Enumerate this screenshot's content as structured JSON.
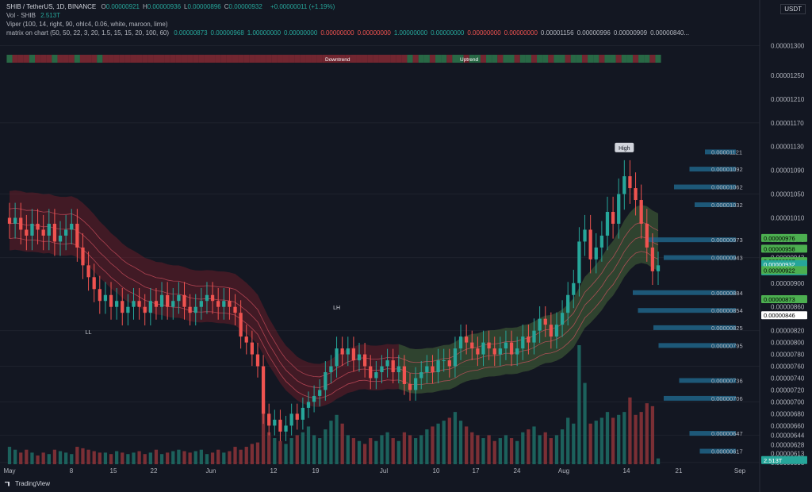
{
  "header": {
    "symbol_line": "SHIB / TetherUS, 1D, BINANCE",
    "ohlc": [
      {
        "k": "O",
        "v": "0.00000921"
      },
      {
        "k": "H",
        "v": "0.00000936"
      },
      {
        "k": "L",
        "v": "0.00000896"
      },
      {
        "k": "C",
        "v": "0.00000932"
      }
    ],
    "change": "+0.00000011 (+1.19%)",
    "vol_label": "Vol · SHIB",
    "vol_value": "2.513T",
    "viper_label": "Viper (100, 14, right, 90, ohlc4, 0.06, white, maroon, lime)",
    "matrix_label": "matrix on chart (50, 50, 22, 3, 20, 1.5, 15, 15, 20, 100, 60)",
    "matrix_values": [
      {
        "v": "0.00000873",
        "c": "#26a69a"
      },
      {
        "v": "0.00000968",
        "c": "#26a69a"
      },
      {
        "v": "1.00000000",
        "c": "#26a69a"
      },
      {
        "v": "0.00000000",
        "c": "#26a69a"
      },
      {
        "v": "0.00000000",
        "c": "#ef5350"
      },
      {
        "v": "0.00000000",
        "c": "#ef5350"
      },
      {
        "v": "1.00000000",
        "c": "#26a69a"
      },
      {
        "v": "0.00000000",
        "c": "#26a69a"
      },
      {
        "v": "0.00000000",
        "c": "#ef5350"
      },
      {
        "v": "0.00000000",
        "c": "#ef5350"
      },
      {
        "v": "0.00001156",
        "c": "#b2b5be"
      },
      {
        "v": "0.00000996",
        "c": "#b2b5be"
      },
      {
        "v": "0.00000909",
        "c": "#b2b5be"
      },
      {
        "v": "0.00000840...",
        "c": "#b2b5be"
      }
    ]
  },
  "currency": "USDT",
  "brand": "TradingView",
  "colors": {
    "background": "#131722",
    "up": "#26a69a",
    "down": "#ef5350",
    "up_bright": "#22ab94",
    "ribbon_bear": "#7a1f2b",
    "ribbon_bull": "#1e6b3a",
    "volume_profile": "#1f5f82"
  },
  "chart_data": {
    "type": "candlestick",
    "ylim": [
      5.95e-06,
      1.31e-05
    ],
    "y_axis_ticks": [
      "0.00001300",
      "0.00001250",
      "0.00001210",
      "0.00001170",
      "0.00001130",
      "0.00001090",
      "0.00001050",
      "0.00001010",
      "0.00000973",
      "0.00000943",
      "0.00000900",
      "0.00000860",
      "0.00000820",
      "0.00000800",
      "0.00000780",
      "0.00000760",
      "0.00000740",
      "0.00000720",
      "0.00000700",
      "0.00000680",
      "0.00000660",
      "0.00000644",
      "0.00000628",
      "0.00000613",
      "0.00000598"
    ],
    "x_axis_ticks": [
      "May",
      "8",
      "15",
      "22",
      "Jun",
      "12",
      "19",
      "Jul",
      "10",
      "17",
      "24",
      "Aug",
      "14",
      "21",
      "Sep"
    ],
    "indicator_levels": [
      "0.00001121",
      "0.00001092",
      "0.00001062",
      "0.00001032",
      "0.00000973",
      "0.00000943",
      "0.00000884",
      "0.00000854",
      "0.00000825",
      "0.00000795",
      "0.00000736",
      "0.00000706",
      "0.00000647",
      "0.00000617"
    ],
    "price_labels": [
      {
        "text": "0.00000976",
        "bg": "#4caf50",
        "color": "#000000"
      },
      {
        "text": "0.00000958",
        "bg": "#4caf50",
        "color": "#000000"
      },
      {
        "text": "0.00000937",
        "bg": "#4caf50",
        "color": "#000000"
      },
      {
        "text": "0.00000932",
        "bg": "#26a69a",
        "color": "#ffffff",
        "sub": "18:06:40"
      },
      {
        "text": "0.00000922",
        "bg": "#4caf50",
        "color": "#000000"
      },
      {
        "text": "0.00000873",
        "bg": "#4caf50",
        "color": "#000000"
      },
      {
        "text": "0.00000846",
        "bg": "#ffffff",
        "color": "#000000"
      },
      {
        "text": "2.513T",
        "bg": "#26a69a",
        "color": "#ffffff"
      }
    ],
    "annotations": [
      "High",
      "LH",
      "LL",
      "Uptrend",
      "Downtrend"
    ],
    "candles_close": [
      1e-05,
      1.01e-05,
      9.9e-06,
      9.8e-06,
      1e-05,
      9.9e-06,
      9.8e-06,
      1e-05,
      9.7e-06,
      9.8e-06,
      9.9e-06,
      1e-05,
      9.6e-06,
      9.3e-06,
      9.1e-06,
      8.9e-06,
      8.7e-06,
      8.8e-06,
      8.6e-06,
      8.7e-06,
      8.5e-06,
      8.6e-06,
      8.7e-06,
      8.6e-06,
      8.5e-06,
      8.7e-06,
      8.6e-06,
      8.8e-06,
      8.6e-06,
      8.7e-06,
      8.8e-06,
      8.6e-06,
      8.5e-06,
      8.6e-06,
      8.7e-06,
      8.8e-06,
      8.7e-06,
      8.6e-06,
      8.7e-06,
      8.6e-06,
      8.5e-06,
      8.1e-06,
      8e-06,
      7.8e-06,
      7.6e-06,
      6.8e-06,
      6.6e-06,
      6.7e-06,
      6.5e-06,
      6.6e-06,
      6.8e-06,
      6.7e-06,
      6.9e-06,
      7e-06,
      7.1e-06,
      7.2e-06,
      7.5e-06,
      7.6e-06,
      7.9e-06,
      7.8e-06,
      7.9e-06,
      7.7e-06,
      7.8e-06,
      7.6e-06,
      7.4e-06,
      7.5e-06,
      7.6e-06,
      7.7e-06,
      7.5e-06,
      7.6e-06,
      7.3e-06,
      7.2e-06,
      7.4e-06,
      7.5e-06,
      7.6e-06,
      7.5e-06,
      7.7e-06,
      7.7e-06,
      7.6e-06,
      7.9e-06,
      8.1e-06,
      8e-06,
      7.9e-06,
      7.8e-06,
      8e-06,
      7.9e-06,
      7.8e-06,
      7.9e-06,
      8e-06,
      7.8e-06,
      7.9e-06,
      8.1e-06,
      8e-06,
      8.2e-06,
      8.4e-06,
      8.3e-06,
      8.1e-06,
      8.3e-06,
      8.5e-06,
      8.8e-06,
      9e-06,
      9.7e-06,
      9.9e-06,
      9.4e-06,
      9.6e-06,
      9.8e-06,
      1.02e-05,
      1e-05,
      1.05e-05,
      1.08e-05,
      1.06e-05,
      1.04e-05,
      1e-05,
      9.6e-06,
      9.2e-06,
      9.3e-06
    ],
    "volume": [
      0.6,
      0.5,
      0.4,
      0.5,
      0.4,
      0.3,
      0.4,
      0.35,
      0.5,
      0.45,
      0.4,
      0.35,
      0.6,
      0.55,
      0.5,
      0.45,
      0.4,
      0.4,
      0.35,
      0.45,
      0.4,
      0.35,
      0.4,
      0.45,
      0.35,
      0.4,
      0.5,
      0.35,
      0.4,
      0.45,
      0.5,
      0.45,
      0.4,
      0.45,
      0.5,
      0.35,
      0.4,
      0.5,
      0.4,
      0.45,
      0.6,
      0.5,
      0.6,
      0.7,
      0.75,
      2.2,
      1.1,
      0.9,
      0.8,
      0.7,
      0.9,
      1.0,
      1.1,
      1.3,
      1.0,
      0.9,
      1.2,
      1.5,
      1.7,
      1.4,
      1.0,
      0.9,
      0.8,
      0.7,
      0.9,
      0.8,
      1.0,
      1.1,
      0.9,
      0.8,
      1.1,
      1.0,
      0.9,
      1.0,
      1.2,
      1.3,
      1.4,
      1.5,
      1.6,
      1.8,
      1.5,
      1.3,
      1.1,
      1.0,
      0.9,
      1.0,
      0.8,
      0.9,
      1.0,
      0.9,
      0.8,
      1.1,
      1.2,
      1.3,
      1.0,
      1.1,
      0.9,
      1.0,
      1.2,
      1.6,
      1.4,
      4.1,
      2.8,
      1.4,
      1.5,
      1.6,
      1.8,
      1.6,
      1.7,
      1.8,
      2.3,
      1.7,
      1.8,
      2.1,
      2.0,
      0.2
    ]
  }
}
